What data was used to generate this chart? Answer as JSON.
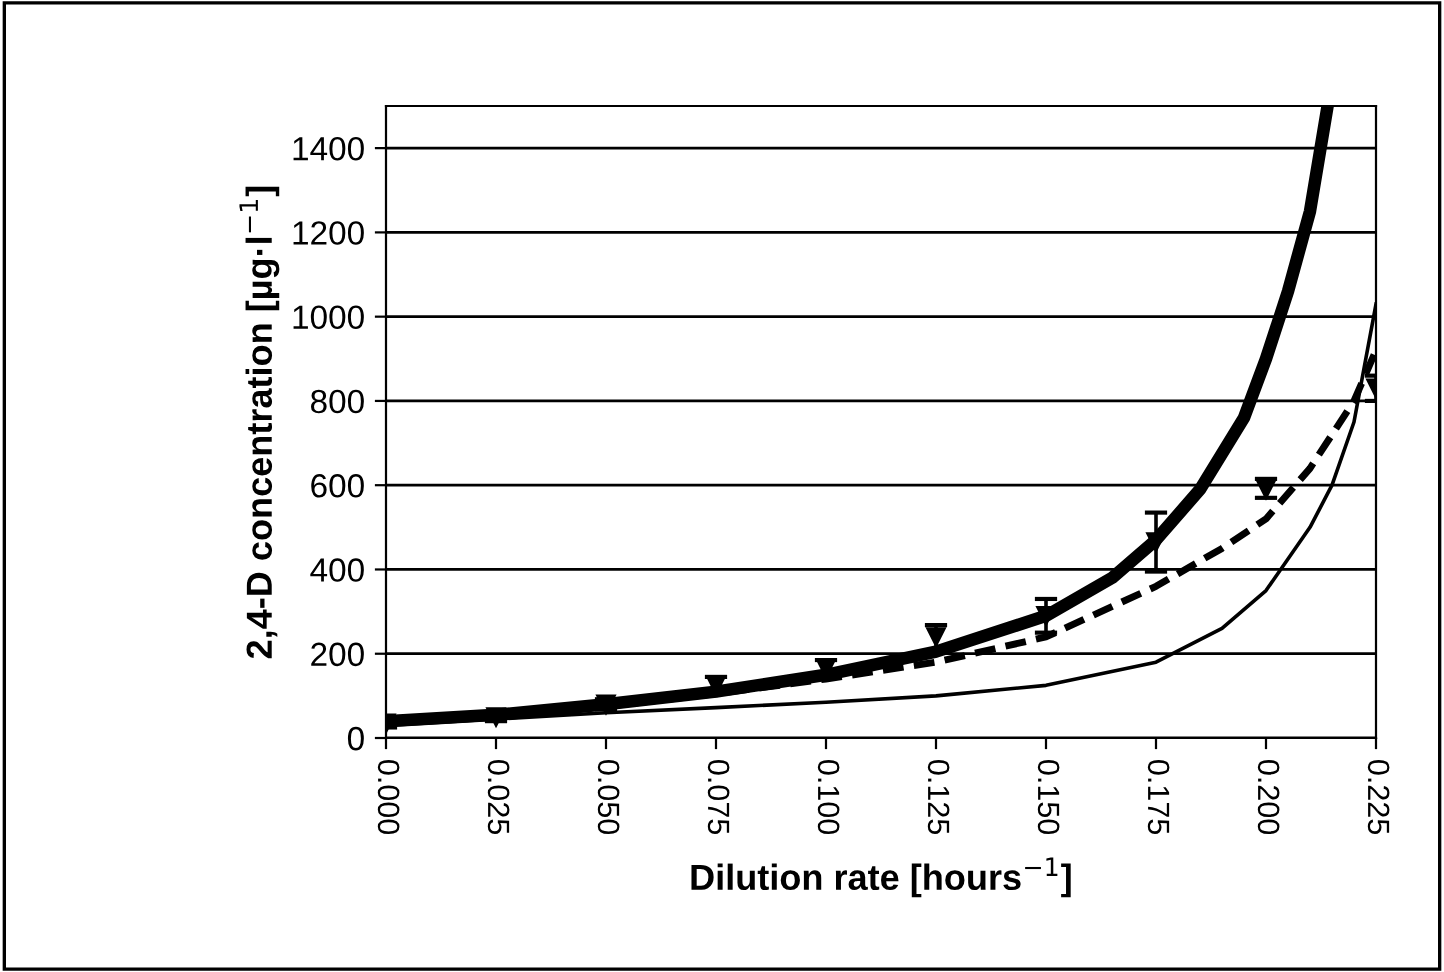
{
  "chart_data": {
    "type": "line",
    "xlabel": "Dilution rate [hours$^{−1}$]",
    "ylabel": "2,4-D concentration [µg·l$^{−1}$]",
    "xlim": [
      0,
      0.225
    ],
    "ylim": [
      0,
      1500
    ],
    "xticks": [
      {
        "value": 0,
        "label": "0.000"
      },
      {
        "value": 0.025,
        "label": "0.025"
      },
      {
        "value": 0.05,
        "label": "0.050"
      },
      {
        "value": 0.075,
        "label": "0.075"
      },
      {
        "value": 0.1,
        "label": "0.100"
      },
      {
        "value": 0.125,
        "label": "0.125"
      },
      {
        "value": 0.15,
        "label": "0.150"
      },
      {
        "value": 0.175,
        "label": "0.175"
      },
      {
        "value": 0.2,
        "label": "0.200"
      },
      {
        "value": 0.225,
        "label": "0.225"
      }
    ],
    "yticks": [
      0,
      200,
      400,
      600,
      800,
      1000,
      1200,
      1400
    ],
    "grid": "y",
    "series": [
      {
        "type": "scatter",
        "marker": "triangle",
        "color": "#000000",
        "x": [
          0,
          0.025,
          0.05,
          0.075,
          0.1,
          0.125,
          0.15,
          0.175,
          0.2,
          0.225
        ],
        "values": [
          35,
          50,
          80,
          125,
          165,
          240,
          290,
          465,
          590,
          830
        ],
        "errors": [
          10,
          10,
          12,
          [
            110,
            145
          ],
          [
            150,
            185
          ],
          [
            205,
            268
          ],
          [
            250,
            330
          ],
          [
            395,
            535
          ],
          [
            570,
            615
          ],
          [
            800,
            860
          ]
        ]
      },
      {
        "line_style": "solid",
        "color": "#000000",
        "x": [
          0,
          0.025,
          0.05,
          0.075,
          0.1,
          0.125,
          0.15,
          0.165,
          0.175,
          0.185,
          0.195,
          0.2,
          0.205,
          0.21,
          0.214
        ],
        "values": [
          40,
          55,
          80,
          110,
          150,
          205,
          290,
          380,
          470,
          590,
          760,
          900,
          1060,
          1250,
          1500
        ]
      },
      {
        "line_style": "dashed",
        "color": "#000000",
        "x": [
          0,
          0.025,
          0.05,
          0.075,
          0.1,
          0.125,
          0.15,
          0.175,
          0.19,
          0.2,
          0.21,
          0.22,
          0.225
        ],
        "values": [
          35,
          50,
          75,
          105,
          140,
          180,
          240,
          360,
          450,
          520,
          640,
          800,
          920
        ]
      },
      {
        "line_style": "solid",
        "color": "#000000",
        "x": [
          0,
          0.025,
          0.05,
          0.075,
          0.1,
          0.125,
          0.15,
          0.175,
          0.19,
          0.2,
          0.21,
          0.215,
          0.22,
          0.225
        ],
        "values": [
          30,
          45,
          60,
          72,
          85,
          100,
          125,
          180,
          260,
          350,
          500,
          600,
          750,
          1030
        ]
      }
    ]
  }
}
